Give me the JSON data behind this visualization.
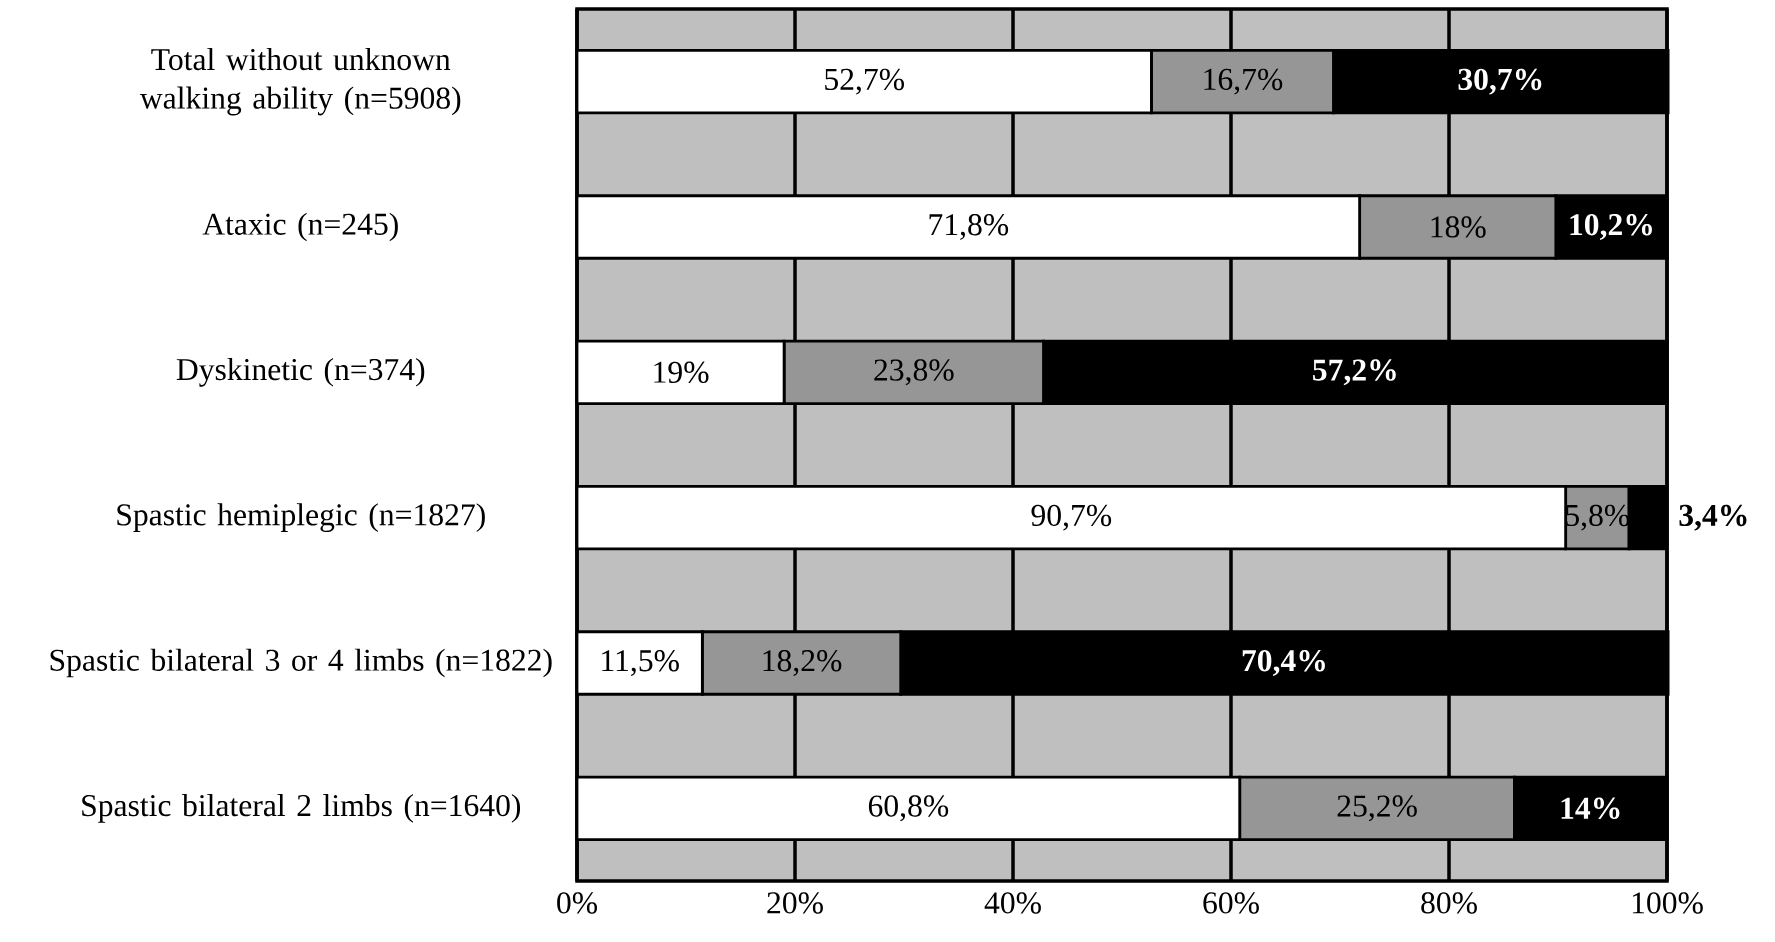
{
  "chart_data": {
    "type": "bar",
    "orientation": "horizontal",
    "stacked": true,
    "grid": "x",
    "categories": [
      "Total without unknown walking ability (n=5908)",
      "Ataxic (n=245)",
      "Dyskinetic (n=374)",
      "Spastic hemiplegic (n=1827)",
      "Spastic bilateral 3 or 4 limbs (n=1822)",
      "Spastic bilateral 2 limbs (n=1640)"
    ],
    "series": [
      {
        "color": "#ffffff",
        "values": [
          52.7,
          71.8,
          19,
          90.7,
          11.5,
          60.8
        ],
        "value_labels": [
          "52,7%",
          "71,8%",
          "19%",
          "90,7%",
          "11,5%",
          "60,8%"
        ]
      },
      {
        "color": "#969696",
        "values": [
          16.7,
          18,
          23.8,
          5.8,
          18.2,
          25.2
        ],
        "value_labels": [
          "16,7%",
          "18%",
          "23,8%",
          "5,8%",
          "18,2%",
          "25,2%"
        ]
      },
      {
        "color": "#000000",
        "values": [
          30.7,
          10.2,
          57.2,
          3.4,
          70.4,
          14
        ],
        "value_labels": [
          "30,7%",
          "10,2%",
          "57,2%",
          "3,4%",
          "70,4%",
          "14%"
        ]
      }
    ],
    "xlim": [
      0,
      100
    ],
    "xticks": [
      {
        "value": 0,
        "label": "0%"
      },
      {
        "value": 20,
        "label": "20%"
      },
      {
        "value": 40,
        "label": "40%"
      },
      {
        "value": 60,
        "label": "60%"
      },
      {
        "value": 80,
        "label": "80%"
      },
      {
        "value": 100,
        "label": "100%"
      }
    ]
  }
}
